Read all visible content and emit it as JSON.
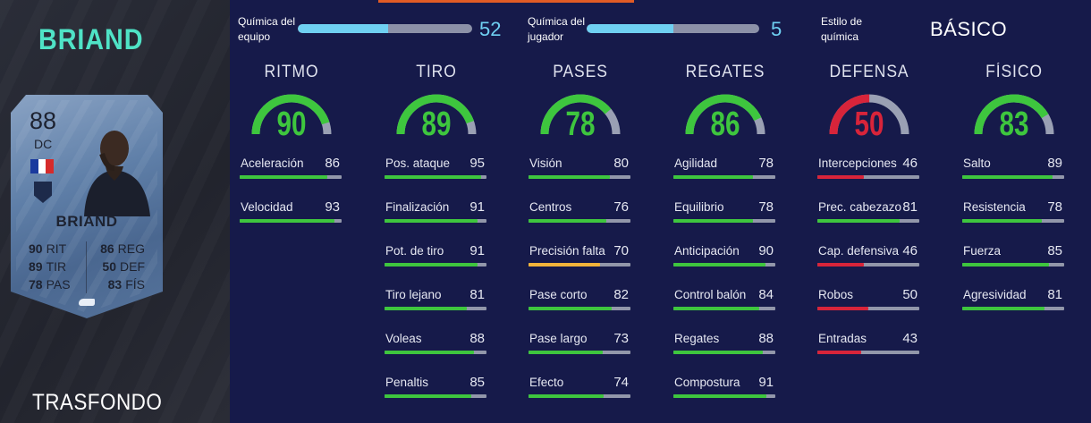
{
  "player": {
    "name": "BRIAND",
    "footer_label": "TRASFONDO"
  },
  "card": {
    "rating": "88",
    "position": "DC",
    "name": "BRIAND",
    "flag_colors": [
      "#1a3a9e",
      "#ffffff",
      "#d62b2b"
    ],
    "stats_left": [
      {
        "value": "90",
        "label": "RIT"
      },
      {
        "value": "89",
        "label": "TIR"
      },
      {
        "value": "78",
        "label": "PAS"
      }
    ],
    "stats_right": [
      {
        "value": "86",
        "label": "REG"
      },
      {
        "value": "50",
        "label": "DEF"
      },
      {
        "value": "83",
        "label": "FÍS"
      }
    ]
  },
  "chemistry": {
    "team": {
      "label_line1": "Química del",
      "label_line2": "equipo",
      "value": "52",
      "fill": 0.52
    },
    "player": {
      "label_line1": "Química del",
      "label_line2": "jugador",
      "value": "5",
      "fill": 0.5
    },
    "style": {
      "label_line1": "Estilo de",
      "label_line2": "química",
      "value": "BÁSICO"
    }
  },
  "colors": {
    "green": "#3ec63e",
    "red": "#d8243a",
    "orange": "#f2b43a",
    "gauge_track": "#9aa0b4",
    "chem_fill": "#6fd0f2"
  },
  "categories": [
    {
      "title": "RITMO",
      "value": 90,
      "color": "green",
      "stats": [
        {
          "label": "Aceleración",
          "value": 86
        },
        {
          "label": "Velocidad",
          "value": 93
        }
      ]
    },
    {
      "title": "TIRO",
      "value": 89,
      "color": "green",
      "stats": [
        {
          "label": "Pos. ataque",
          "value": 95
        },
        {
          "label": "Finalización",
          "value": 91
        },
        {
          "label": "Pot. de tiro",
          "value": 91
        },
        {
          "label": "Tiro lejano",
          "value": 81
        },
        {
          "label": "Voleas",
          "value": 88
        },
        {
          "label": "Penaltis",
          "value": 85
        }
      ]
    },
    {
      "title": "PASES",
      "value": 78,
      "color": "green",
      "stats": [
        {
          "label": "Visión",
          "value": 80
        },
        {
          "label": "Centros",
          "value": 76
        },
        {
          "label": "Precisión falta",
          "value": 70,
          "color": "orange"
        },
        {
          "label": "Pase corto",
          "value": 82
        },
        {
          "label": "Pase largo",
          "value": 73
        },
        {
          "label": "Efecto",
          "value": 74
        }
      ]
    },
    {
      "title": "REGATES",
      "value": 86,
      "color": "green",
      "stats": [
        {
          "label": "Agilidad",
          "value": 78
        },
        {
          "label": "Equilibrio",
          "value": 78
        },
        {
          "label": "Anticipación",
          "value": 90
        },
        {
          "label": "Control balón",
          "value": 84
        },
        {
          "label": "Regates",
          "value": 88
        },
        {
          "label": "Compostura",
          "value": 91
        }
      ]
    },
    {
      "title": "DEFENSA",
      "value": 50,
      "color": "red",
      "stats": [
        {
          "label": "Intercepciones",
          "value": 46
        },
        {
          "label": "Prec. cabezazo",
          "value": 81,
          "color": "green"
        },
        {
          "label": "Cap. defensiva",
          "value": 46
        },
        {
          "label": "Robos",
          "value": 50
        },
        {
          "label": "Entradas",
          "value": 43
        }
      ]
    },
    {
      "title": "FÍSICO",
      "value": 83,
      "color": "green",
      "stats": [
        {
          "label": "Salto",
          "value": 89
        },
        {
          "label": "Resistencia",
          "value": 78
        },
        {
          "label": "Fuerza",
          "value": 85
        },
        {
          "label": "Agresividad",
          "value": 81
        }
      ]
    }
  ]
}
